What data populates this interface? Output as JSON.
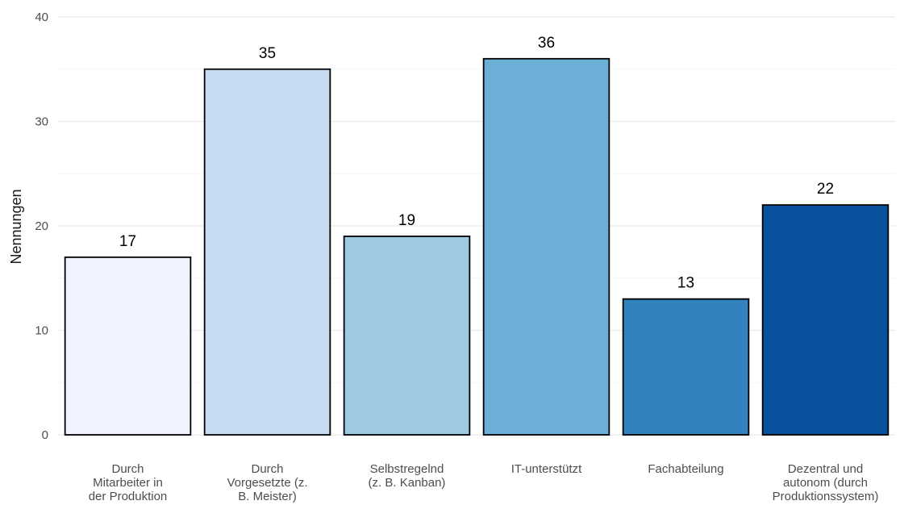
{
  "chart_data": {
    "type": "bar",
    "categories": [
      "Durch Mitarbeiter in der Produktion",
      "Durch Vorgesetzte (z. B. Meister)",
      "Selbstregelnd (z. B. Kanban)",
      "IT-unterstützt",
      "Fachabteilung",
      "Dezentral und autonom (durch Produktionssystem)"
    ],
    "category_lines": [
      [
        "Durch",
        "Mitarbeiter in",
        "der Produktion"
      ],
      [
        "Durch",
        "Vorgesetzte (z.",
        "B. Meister)"
      ],
      [
        "Selbstregelnd",
        "(z. B. Kanban)"
      ],
      [
        "IT-unterstützt"
      ],
      [
        "Fachabteilung"
      ],
      [
        "Dezentral und",
        "autonom (durch",
        "Produktionssystem)"
      ]
    ],
    "values": [
      17,
      35,
      19,
      36,
      13,
      22
    ],
    "value_labels": [
      "17",
      "35",
      "19",
      "36",
      "13",
      "22"
    ],
    "colors": [
      "#eff3ff",
      "#c6dbef",
      "#9ecae1",
      "#6baed6",
      "#3182bd",
      "#08519c"
    ],
    "title": "",
    "xlabel": "",
    "ylabel": "Nennungen",
    "ylim": [
      0,
      40
    ],
    "yticks": [
      0,
      10,
      20,
      30,
      40
    ],
    "ytick_labels": [
      "0",
      "10",
      "20",
      "30",
      "40"
    ],
    "grid": true,
    "legend": "none"
  }
}
